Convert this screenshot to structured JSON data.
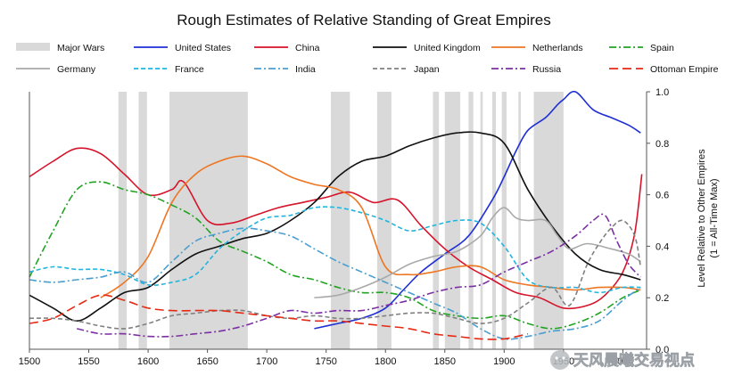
{
  "chart_data": {
    "type": "line",
    "title": "Rough Estimates of Relative Standing of Great Empires",
    "xlabel": "",
    "ylabel": "Level Relative to Other Empires",
    "ylabel_sub": "(1 = All-Time Max)",
    "xlim": [
      1500,
      2020
    ],
    "ylim": [
      0,
      1.0
    ],
    "x_ticks": [
      1500,
      1550,
      1600,
      1650,
      1700,
      1750,
      1800,
      1850,
      1900,
      1950,
      2000
    ],
    "x_tick_labels": [
      "1500",
      "1550",
      "1600",
      "1650",
      "1700",
      "1750",
      "1800",
      "1850",
      "1900",
      "1950",
      "2000"
    ],
    "y_ticks": [
      0,
      0.2,
      0.4,
      0.6,
      0.8,
      1.0
    ],
    "y_tick_labels": [
      "0.0",
      "0.2",
      "0.4",
      "0.6",
      "0.8",
      "1.0"
    ],
    "major_wars_label": "Major Wars",
    "major_wars": [
      [
        1575,
        1582
      ],
      [
        1592,
        1599
      ],
      [
        1618,
        1684
      ],
      [
        1754,
        1770
      ],
      [
        1793,
        1805
      ],
      [
        1840,
        1845
      ],
      [
        1850,
        1863
      ],
      [
        1870,
        1874
      ],
      [
        1880,
        1882
      ],
      [
        1890,
        1893
      ],
      [
        1898,
        1902
      ],
      [
        1912,
        1914
      ],
      [
        1925,
        1950
      ]
    ],
    "series": [
      {
        "name": "United States",
        "color": "#1f2fd6",
        "dash": "solid",
        "width": 1.6,
        "x": [
          1740,
          1760,
          1780,
          1800,
          1815,
          1830,
          1850,
          1870,
          1890,
          1900,
          1910,
          1920,
          1935,
          1945,
          1950,
          1960,
          1975,
          1990,
          2005,
          2015
        ],
        "values": [
          0.08,
          0.1,
          0.12,
          0.16,
          0.23,
          0.3,
          0.37,
          0.44,
          0.58,
          0.67,
          0.77,
          0.85,
          0.9,
          0.95,
          0.97,
          1.0,
          0.93,
          0.9,
          0.87,
          0.84
        ]
      },
      {
        "name": "China",
        "color": "#d6132a",
        "dash": "solid",
        "width": 1.6,
        "x": [
          1500,
          1520,
          1540,
          1560,
          1580,
          1600,
          1620,
          1630,
          1650,
          1670,
          1690,
          1710,
          1730,
          1750,
          1770,
          1790,
          1810,
          1830,
          1850,
          1870,
          1890,
          1910,
          1930,
          1950,
          1970,
          1985,
          2000,
          2010,
          2016
        ],
        "values": [
          0.67,
          0.73,
          0.78,
          0.76,
          0.68,
          0.6,
          0.62,
          0.65,
          0.5,
          0.49,
          0.52,
          0.55,
          0.57,
          0.59,
          0.61,
          0.57,
          0.58,
          0.48,
          0.39,
          0.32,
          0.27,
          0.22,
          0.2,
          0.16,
          0.17,
          0.21,
          0.3,
          0.45,
          0.68
        ]
      },
      {
        "name": "United Kingdom",
        "color": "#111111",
        "dash": "solid",
        "width": 1.6,
        "x": [
          1500,
          1520,
          1540,
          1560,
          1580,
          1600,
          1620,
          1640,
          1660,
          1680,
          1700,
          1720,
          1740,
          1760,
          1780,
          1800,
          1820,
          1840,
          1860,
          1880,
          1900,
          1920,
          1940,
          1960,
          1980,
          2000,
          2015
        ],
        "values": [
          0.21,
          0.16,
          0.11,
          0.16,
          0.22,
          0.24,
          0.31,
          0.37,
          0.4,
          0.43,
          0.45,
          0.5,
          0.57,
          0.67,
          0.73,
          0.75,
          0.79,
          0.82,
          0.84,
          0.84,
          0.8,
          0.62,
          0.48,
          0.37,
          0.31,
          0.29,
          0.27
        ]
      },
      {
        "name": "Netherlands",
        "color": "#ee7622",
        "dash": "solid",
        "width": 1.6,
        "x": [
          1560,
          1580,
          1600,
          1620,
          1640,
          1660,
          1680,
          1700,
          1720,
          1740,
          1760,
          1780,
          1800,
          1820,
          1840,
          1860,
          1880,
          1900,
          1920,
          1940,
          1960,
          1980,
          2000,
          2015
        ],
        "values": [
          0.2,
          0.26,
          0.36,
          0.57,
          0.68,
          0.73,
          0.75,
          0.72,
          0.67,
          0.64,
          0.62,
          0.55,
          0.32,
          0.29,
          0.3,
          0.32,
          0.32,
          0.27,
          0.25,
          0.24,
          0.23,
          0.24,
          0.24,
          0.23
        ]
      },
      {
        "name": "Spain",
        "color": "#22a322",
        "dash": "dashdot",
        "width": 1.6,
        "x": [
          1500,
          1520,
          1540,
          1560,
          1580,
          1600,
          1620,
          1640,
          1660,
          1680,
          1700,
          1720,
          1740,
          1760,
          1780,
          1800,
          1820,
          1840,
          1860,
          1880,
          1900,
          1920,
          1940,
          1960,
          1980,
          2000,
          2015
        ],
        "values": [
          0.28,
          0.46,
          0.62,
          0.65,
          0.62,
          0.6,
          0.56,
          0.51,
          0.42,
          0.38,
          0.34,
          0.29,
          0.27,
          0.24,
          0.22,
          0.22,
          0.2,
          0.15,
          0.13,
          0.12,
          0.13,
          0.1,
          0.08,
          0.1,
          0.14,
          0.2,
          0.23
        ]
      },
      {
        "name": "Germany",
        "color": "#a9a9a9",
        "dash": "solid",
        "width": 1.6,
        "x": [
          1740,
          1760,
          1780,
          1800,
          1820,
          1840,
          1860,
          1880,
          1890,
          1900,
          1910,
          1920,
          1935,
          1945,
          1955,
          1970,
          1990,
          2005,
          2015
        ],
        "values": [
          0.2,
          0.21,
          0.24,
          0.28,
          0.33,
          0.36,
          0.38,
          0.44,
          0.51,
          0.55,
          0.51,
          0.5,
          0.5,
          0.44,
          0.39,
          0.41,
          0.39,
          0.37,
          0.34
        ]
      },
      {
        "name": "France",
        "color": "#22b4dc",
        "dash": "dashed",
        "width": 1.6,
        "x": [
          1500,
          1520,
          1540,
          1560,
          1580,
          1600,
          1620,
          1640,
          1660,
          1680,
          1700,
          1720,
          1740,
          1760,
          1780,
          1800,
          1820,
          1840,
          1860,
          1880,
          1900,
          1920,
          1940,
          1960,
          1980,
          2000,
          2015
        ],
        "values": [
          0.3,
          0.32,
          0.31,
          0.31,
          0.29,
          0.25,
          0.26,
          0.29,
          0.39,
          0.46,
          0.51,
          0.52,
          0.55,
          0.55,
          0.53,
          0.5,
          0.46,
          0.48,
          0.5,
          0.49,
          0.4,
          0.27,
          0.24,
          0.24,
          0.22,
          0.24,
          0.24
        ]
      },
      {
        "name": "India",
        "color": "#4a9fd0",
        "dash": "dashdot",
        "width": 1.6,
        "x": [
          1500,
          1520,
          1540,
          1560,
          1580,
          1600,
          1620,
          1640,
          1660,
          1680,
          1700,
          1720,
          1740,
          1760,
          1780,
          1800,
          1820,
          1840,
          1860,
          1880,
          1900,
          1920,
          1940,
          1960,
          1980,
          2000,
          2015
        ],
        "values": [
          0.27,
          0.26,
          0.27,
          0.28,
          0.3,
          0.26,
          0.34,
          0.42,
          0.45,
          0.47,
          0.46,
          0.44,
          0.39,
          0.34,
          0.3,
          0.26,
          0.22,
          0.18,
          0.14,
          0.08,
          0.04,
          0.05,
          0.07,
          0.08,
          0.11,
          0.19,
          0.24
        ]
      },
      {
        "name": "Japan",
        "color": "#808080",
        "dash": "dashed",
        "width": 1.6,
        "x": [
          1500,
          1520,
          1540,
          1560,
          1580,
          1600,
          1620,
          1640,
          1660,
          1680,
          1700,
          1720,
          1740,
          1760,
          1780,
          1800,
          1820,
          1840,
          1860,
          1880,
          1900,
          1920,
          1940,
          1955,
          1970,
          1980,
          1990,
          2000,
          2010,
          2015
        ],
        "values": [
          0.12,
          0.12,
          0.11,
          0.09,
          0.08,
          0.1,
          0.13,
          0.14,
          0.15,
          0.15,
          0.13,
          0.12,
          0.13,
          0.12,
          0.12,
          0.13,
          0.14,
          0.14,
          0.12,
          0.1,
          0.12,
          0.18,
          0.24,
          0.17,
          0.33,
          0.41,
          0.47,
          0.5,
          0.44,
          0.32
        ]
      },
      {
        "name": "Russia",
        "color": "#7b2fa3",
        "dash": "dashdot",
        "width": 1.6,
        "x": [
          1540,
          1560,
          1580,
          1600,
          1620,
          1640,
          1660,
          1680,
          1700,
          1720,
          1740,
          1760,
          1780,
          1800,
          1820,
          1840,
          1860,
          1880,
          1900,
          1920,
          1940,
          1960,
          1975,
          1985,
          1995,
          2005,
          2015
        ],
        "values": [
          0.08,
          0.06,
          0.06,
          0.05,
          0.05,
          0.06,
          0.07,
          0.09,
          0.12,
          0.15,
          0.14,
          0.15,
          0.15,
          0.17,
          0.19,
          0.22,
          0.24,
          0.25,
          0.3,
          0.34,
          0.38,
          0.44,
          0.5,
          0.52,
          0.42,
          0.33,
          0.28
        ]
      },
      {
        "name": "Ottoman Empire",
        "color": "#e52a14",
        "dash": "longdash",
        "width": 1.6,
        "x": [
          1500,
          1520,
          1540,
          1560,
          1580,
          1600,
          1620,
          1640,
          1660,
          1680,
          1700,
          1720,
          1740,
          1760,
          1780,
          1800,
          1820,
          1840,
          1860,
          1880,
          1900,
          1920
        ],
        "values": [
          0.1,
          0.12,
          0.17,
          0.21,
          0.19,
          0.16,
          0.15,
          0.15,
          0.15,
          0.14,
          0.13,
          0.12,
          0.11,
          0.11,
          0.1,
          0.09,
          0.08,
          0.06,
          0.05,
          0.04,
          0.04,
          0.06
        ]
      }
    ]
  },
  "watermark": {
    "text": "天风晨曦交易视点"
  }
}
